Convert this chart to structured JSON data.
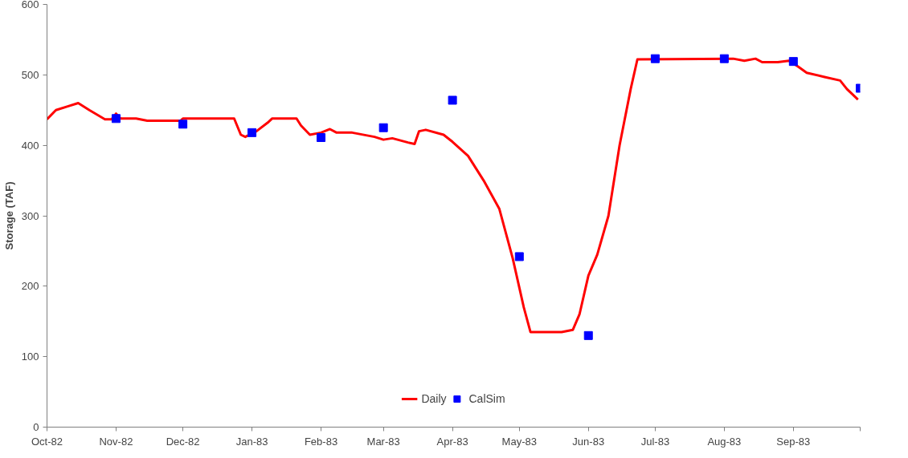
{
  "chart_data": {
    "type": "line",
    "ylabel": "Storage (TAF)",
    "xlim": [
      "1982-10-01",
      "1983-10-01"
    ],
    "ylim": [
      0,
      600
    ],
    "yticks": [
      0,
      100,
      200,
      300,
      400,
      500,
      600
    ],
    "xticks": [
      {
        "value": "1982-10-01",
        "label": "Oct-82"
      },
      {
        "value": "1982-11-01",
        "label": "Nov-82"
      },
      {
        "value": "1982-12-01",
        "label": "Dec-82"
      },
      {
        "value": "1983-01-01",
        "label": "Jan-83"
      },
      {
        "value": "1983-02-01",
        "label": "Feb-83"
      },
      {
        "value": "1983-03-01",
        "label": "Mar-83"
      },
      {
        "value": "1983-04-01",
        "label": "Apr-83"
      },
      {
        "value": "1983-05-01",
        "label": "May-83"
      },
      {
        "value": "1983-06-01",
        "label": "Jun-83"
      },
      {
        "value": "1983-07-01",
        "label": "Jul-83"
      },
      {
        "value": "1983-08-01",
        "label": "Aug-83"
      },
      {
        "value": "1983-09-01",
        "label": "Sep-83"
      },
      {
        "value": "1983-10-01",
        "label": null
      }
    ],
    "grid": false,
    "legend": "bottom",
    "series": [
      {
        "name": "Daily",
        "color": "#ff0000",
        "x": [
          "1982-10-01",
          "1982-10-05",
          "1982-10-10",
          "1982-10-15",
          "1982-10-20",
          "1982-10-27",
          "1982-10-30",
          "1982-11-01",
          "1982-11-03",
          "1982-11-10",
          "1982-11-15",
          "1982-11-30",
          "1982-12-01",
          "1982-12-24",
          "1982-12-27",
          "1982-12-29",
          "1983-01-03",
          "1983-01-08",
          "1983-01-10",
          "1983-01-21",
          "1983-01-23",
          "1983-01-27",
          "1983-02-01",
          "1983-02-05",
          "1983-02-08",
          "1983-02-15",
          "1983-02-25",
          "1983-03-01",
          "1983-03-05",
          "1983-03-12",
          "1983-03-15",
          "1983-03-17",
          "1983-03-20",
          "1983-03-28",
          "1983-04-01",
          "1983-04-08",
          "1983-04-15",
          "1983-04-22",
          "1983-04-28",
          "1983-05-03",
          "1983-05-06",
          "1983-05-20",
          "1983-05-25",
          "1983-05-28",
          "1983-06-01",
          "1983-06-05",
          "1983-06-10",
          "1983-06-15",
          "1983-06-20",
          "1983-06-23",
          "1983-08-05",
          "1983-08-10",
          "1983-08-15",
          "1983-08-18",
          "1983-08-25",
          "1983-08-30",
          "1983-09-03",
          "1983-09-07",
          "1983-09-15",
          "1983-09-22",
          "1983-09-25",
          "1983-09-30"
        ],
        "values": [
          437,
          450,
          455,
          460,
          450,
          437,
          437,
          445,
          438,
          438,
          435,
          435,
          438,
          438,
          415,
          412,
          420,
          432,
          438,
          438,
          428,
          415,
          418,
          423,
          418,
          418,
          412,
          408,
          410,
          404,
          402,
          420,
          422,
          415,
          405,
          385,
          350,
          310,
          240,
          170,
          135,
          135,
          138,
          160,
          215,
          245,
          300,
          400,
          480,
          522,
          523,
          520,
          523,
          518,
          518,
          520,
          512,
          503,
          497,
          492,
          480,
          465
        ]
      },
      {
        "name": "CalSim",
        "type": "scatter",
        "color": "#0000ff",
        "marker": "square",
        "x": [
          "1982-11-01",
          "1982-12-01",
          "1983-01-01",
          "1983-02-01",
          "1983-03-01",
          "1983-04-01",
          "1983-05-01",
          "1983-06-01",
          "1983-07-01",
          "1983-08-01",
          "1983-09-01",
          "1983-10-01"
        ],
        "values": [
          438,
          430,
          418,
          411,
          425,
          464,
          242,
          130,
          523,
          523,
          519,
          481
        ]
      }
    ]
  }
}
